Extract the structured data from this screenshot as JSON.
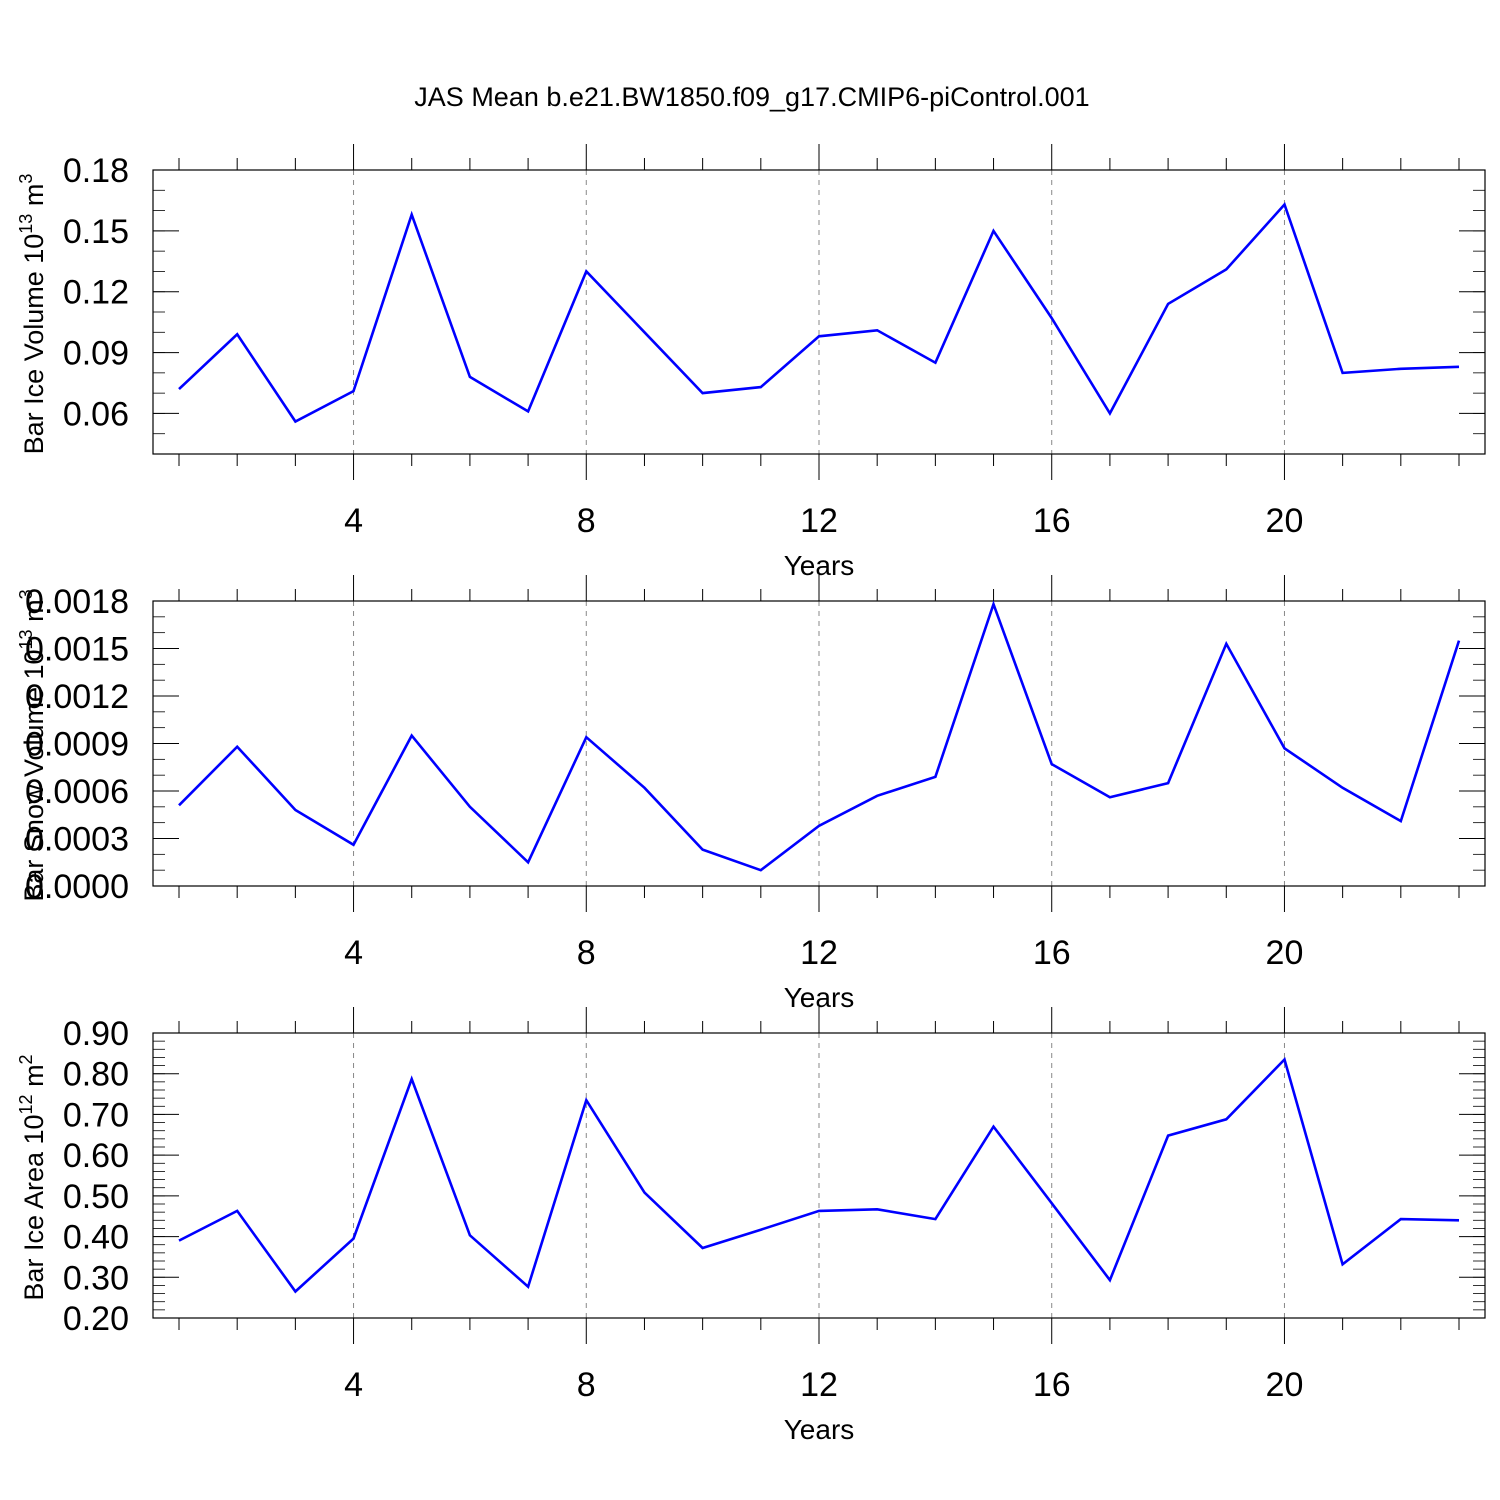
{
  "title": "JAS Mean b.e21.BW1850.f09_g17.CMIP6-piControl.001",
  "colors": {
    "line": "#0000ff",
    "axis": "#000000",
    "grid": "#888888"
  },
  "chart_data": [
    {
      "type": "line",
      "ylabel": "Bar Ice Volume 10",
      "ylabel_sup": "13",
      "ylabel_unit": " m",
      "ylabel_unit_sup": "3",
      "xlabel": "Years",
      "xlim": [
        1,
        23
      ],
      "ylim": [
        0.04,
        0.18
      ],
      "x_ticks": [
        4,
        8,
        12,
        16,
        20
      ],
      "x_tick_labels": [
        "4",
        "8",
        "12",
        "16",
        "20"
      ],
      "y_ticks": [
        0.06,
        0.09,
        0.12,
        0.15,
        0.18
      ],
      "y_tick_labels": [
        "0.06",
        "0.09",
        "0.12",
        "0.15",
        "0.18"
      ],
      "y_minor_step": 0.01,
      "grid": "x",
      "x": [
        1,
        2,
        3,
        4,
        5,
        6,
        7,
        8,
        9,
        10,
        11,
        12,
        13,
        14,
        15,
        16,
        17,
        18,
        19,
        20,
        21,
        22,
        23
      ],
      "values": [
        0.072,
        0.099,
        0.056,
        0.071,
        0.158,
        0.078,
        0.061,
        0.13,
        0.1,
        0.07,
        0.073,
        0.098,
        0.101,
        0.085,
        0.15,
        0.107,
        0.06,
        0.114,
        0.131,
        0.163,
        0.08,
        0.082,
        0.083
      ]
    },
    {
      "type": "line",
      "ylabel": "Bar Snow Volume 10",
      "ylabel_sup": "13",
      "ylabel_unit": " m",
      "ylabel_unit_sup": "3",
      "xlabel": "Years",
      "xlim": [
        1,
        23
      ],
      "ylim": [
        0.0,
        0.0018
      ],
      "x_ticks": [
        4,
        8,
        12,
        16,
        20
      ],
      "x_tick_labels": [
        "4",
        "8",
        "12",
        "16",
        "20"
      ],
      "y_ticks": [
        0.0,
        0.0003,
        0.0006,
        0.0009,
        0.0012,
        0.0015,
        0.0018
      ],
      "y_tick_labels": [
        "0.0000",
        "0.0003",
        "0.0006",
        "0.0009",
        "0.0012",
        "0.0015",
        "0.0018"
      ],
      "y_minor_step": 0.0001,
      "grid": "x",
      "x": [
        1,
        2,
        3,
        4,
        5,
        6,
        7,
        8,
        9,
        10,
        11,
        12,
        13,
        14,
        15,
        16,
        17,
        18,
        19,
        20,
        21,
        22,
        23
      ],
      "values": [
        0.00051,
        0.00088,
        0.00048,
        0.00026,
        0.00095,
        0.0005,
        0.00015,
        0.00094,
        0.00062,
        0.00023,
        0.0001,
        0.00038,
        0.00057,
        0.00069,
        0.00178,
        0.00077,
        0.00056,
        0.00065,
        0.00153,
        0.00087,
        0.00062,
        0.00041,
        0.00155
      ]
    },
    {
      "type": "line",
      "ylabel": "Bar Ice Area 10",
      "ylabel_sup": "12",
      "ylabel_unit": " m",
      "ylabel_unit_sup": "2",
      "xlabel": "Years",
      "xlim": [
        1,
        23
      ],
      "ylim": [
        0.2,
        0.9
      ],
      "x_ticks": [
        4,
        8,
        12,
        16,
        20
      ],
      "x_tick_labels": [
        "4",
        "8",
        "12",
        "16",
        "20"
      ],
      "y_ticks": [
        0.2,
        0.3,
        0.4,
        0.5,
        0.6,
        0.7,
        0.8,
        0.9
      ],
      "y_tick_labels": [
        "0.20",
        "0.30",
        "0.40",
        "0.50",
        "0.60",
        "0.70",
        "0.80",
        "0.90"
      ],
      "y_minor_step": 0.02,
      "grid": "x",
      "x": [
        1,
        2,
        3,
        4,
        5,
        6,
        7,
        8,
        9,
        10,
        11,
        12,
        13,
        14,
        15,
        16,
        17,
        18,
        19,
        20,
        21,
        22,
        23
      ],
      "values": [
        0.39,
        0.463,
        0.265,
        0.395,
        0.787,
        0.403,
        0.277,
        0.735,
        0.508,
        0.372,
        0.417,
        0.463,
        0.467,
        0.443,
        0.67,
        0.482,
        0.293,
        0.648,
        0.688,
        0.835,
        0.332,
        0.443,
        0.44
      ]
    }
  ]
}
